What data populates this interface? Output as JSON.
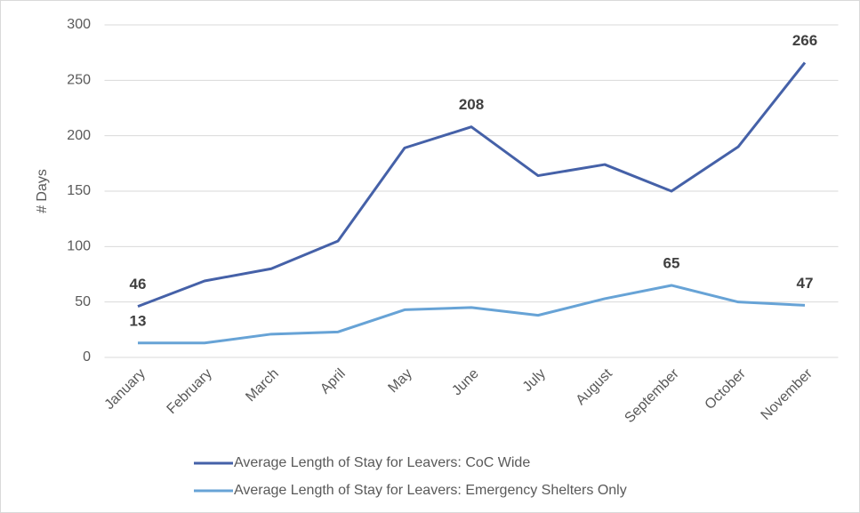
{
  "chart_data": {
    "type": "line",
    "y_label": "# Days",
    "categories": [
      "January",
      "February",
      "March",
      "April",
      "May",
      "June",
      "July",
      "August",
      "September",
      "October",
      "November"
    ],
    "series": [
      {
        "name": "Average Length of Stay for Leavers: CoC Wide",
        "color": "#4561a8",
        "values": [
          46,
          69,
          80,
          105,
          189,
          208,
          164,
          174,
          150,
          190,
          266
        ],
        "value_labels": [
          "46",
          null,
          null,
          null,
          null,
          "208",
          null,
          null,
          null,
          null,
          "266"
        ]
      },
      {
        "name": "Average Length of Stay for Leavers: Emergency Shelters Only",
        "color": "#67a3d6",
        "values": [
          13,
          13,
          21,
          23,
          43,
          45,
          38,
          53,
          65,
          50,
          47
        ],
        "value_labels": [
          "13",
          null,
          null,
          null,
          null,
          null,
          null,
          null,
          "65",
          null,
          "47"
        ]
      }
    ],
    "ylim": [
      0,
      300
    ],
    "yticks": [
      0,
      50,
      100,
      150,
      200,
      250,
      300
    ],
    "grid": true,
    "legend": "bottom"
  }
}
